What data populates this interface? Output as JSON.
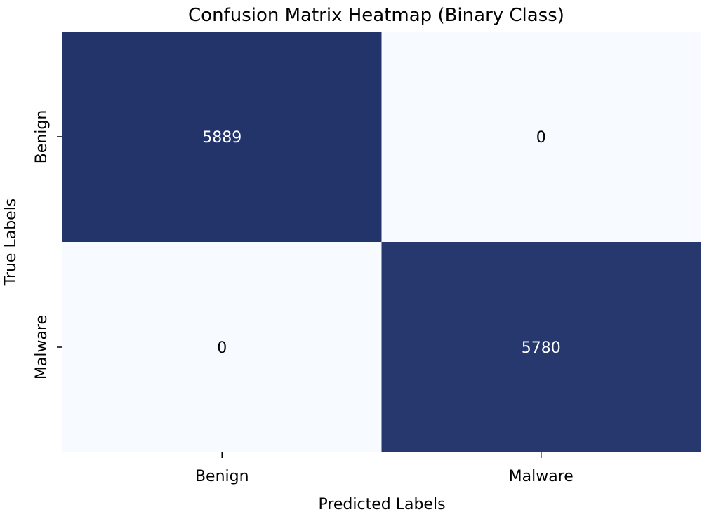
{
  "chart_data": {
    "type": "heatmap",
    "title": "Confusion Matrix Heatmap (Binary Class)",
    "xlabel": "Predicted Labels",
    "ylabel": "True Labels",
    "x_categories": [
      "Benign",
      "Malware"
    ],
    "y_categories": [
      "Benign",
      "Malware"
    ],
    "values": [
      [
        5889,
        0
      ],
      [
        0,
        5780
      ]
    ],
    "colormap": {
      "low": "#f7fbff",
      "high": "#22346a"
    },
    "annotation_colors": {
      "on_dark": "#ffffff",
      "on_light": "#000000"
    },
    "colorbar": false,
    "grid": false
  }
}
